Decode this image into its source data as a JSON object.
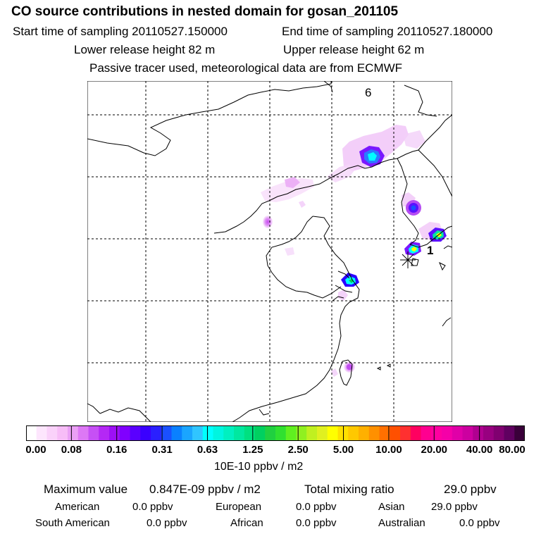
{
  "header": {
    "title": "CO  source contributions in nested domain for gosan_201105",
    "start": "Start time of sampling 20110527.150000",
    "end": "End time of sampling 20110527.180000",
    "lower": "Lower release height   82 m",
    "upper": "Upper release height   62 m",
    "note": "Passive tracer used, meteorological data are from ECMWF"
  },
  "map": {
    "label_6": "6",
    "label_1": "1",
    "receptor_icon": "asterisk-receptor-icon"
  },
  "colorbar": {
    "ticks": [
      "0.00",
      "0.08",
      "0.16",
      "0.31",
      "0.63",
      "1.25",
      "2.50",
      "5.00",
      "10.00",
      "20.00",
      "40.00",
      "80.00"
    ],
    "unit": "10E-10 ppbv / m2",
    "colors": [
      "#ffffff",
      "#fde6fd",
      "#fad2fa",
      "#f7bdf7",
      "#eaa0f5",
      "#dd78f5",
      "#c650f5",
      "#b428f5",
      "#9d10f5",
      "#8000ff",
      "#5a00ff",
      "#3a00ff",
      "#2a20ff",
      "#1a50ff",
      "#0a80ff",
      "#1aa5ff",
      "#30c5ff",
      "#00ffff",
      "#00f5e0",
      "#00f0c0",
      "#00e8a0",
      "#00e080",
      "#00d060",
      "#20d040",
      "#30e030",
      "#60ef20",
      "#90f020",
      "#c0f020",
      "#e0f020",
      "#ffff00",
      "#ffe000",
      "#ffc800",
      "#ffb000",
      "#ff9000",
      "#ff7000",
      "#ff5000",
      "#ff3030",
      "#ff0060",
      "#ff0090",
      "#ff00a0",
      "#f500a8",
      "#e000a8",
      "#cc00a0",
      "#b00090",
      "#980080",
      "#800070",
      "#600060",
      "#3a003a"
    ]
  },
  "summary": {
    "max_label": "Maximum value",
    "max_value": "0.847E-09 ppbv / m2",
    "total_label": "Total mixing ratio",
    "total_value": "29.0 ppbv",
    "regions": [
      {
        "name": "American",
        "value": "0.0 ppbv"
      },
      {
        "name": "European",
        "value": "0.0 ppbv"
      },
      {
        "name": "Asian",
        "value": "29.0 ppbv"
      },
      {
        "name": "South American",
        "value": "0.0 ppbv"
      },
      {
        "name": "African",
        "value": "0.0 ppbv"
      },
      {
        "name": "Australian",
        "value": "0.0 ppbv"
      }
    ]
  }
}
